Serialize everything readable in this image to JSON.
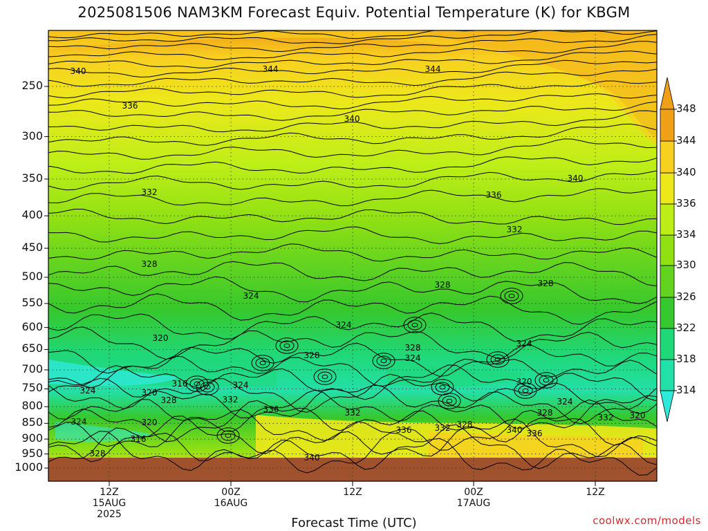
{
  "title": "2025081506 NAM3KM Forecast Equiv. Potential Temperature (K) for KBGM",
  "xlabel": "Forecast Time (UTC)",
  "credit": "coolwx.com/models",
  "chart_data": {
    "type": "heatmap",
    "title": "2025081506 NAM3KM Forecast Equiv. Potential Temperature (K) for KBGM",
    "xlabel": "Forecast Time (UTC)",
    "ylabel": "",
    "y_axis": "pressure (hPa), inverted",
    "y_ticks": [
      250,
      300,
      350,
      400,
      450,
      500,
      550,
      600,
      650,
      700,
      750,
      800,
      850,
      900,
      950,
      1000
    ],
    "ylim": [
      1000,
      200
    ],
    "x_ticks": [
      {
        "label": "12Z",
        "sub": "15AUG",
        "sub2": "2025"
      },
      {
        "label": "00Z",
        "sub": "16AUG",
        "sub2": ""
      },
      {
        "label": "12Z",
        "sub": "",
        "sub2": ""
      },
      {
        "label": "00Z",
        "sub": "17AUG",
        "sub2": ""
      },
      {
        "label": "12Z",
        "sub": "",
        "sub2": ""
      }
    ],
    "colorbar": {
      "levels": [
        314,
        318,
        322,
        326,
        330,
        334,
        336,
        340,
        344,
        348
      ],
      "colors": [
        "#2ee8d8",
        "#23e0a8",
        "#20d878",
        "#36c82c",
        "#62d420",
        "#90e014",
        "#bdee18",
        "#ece81a",
        "#f8d020",
        "#f0a018"
      ]
    },
    "contour_labels": [
      {
        "text": "340"
      },
      {
        "text": "344"
      },
      {
        "text": "344"
      },
      {
        "text": "336"
      },
      {
        "text": "340"
      },
      {
        "text": "340"
      },
      {
        "text": "336"
      },
      {
        "text": "332"
      },
      {
        "text": "332"
      },
      {
        "text": "328"
      },
      {
        "text": "328"
      },
      {
        "text": "328"
      },
      {
        "text": "324"
      },
      {
        "text": "324"
      },
      {
        "text": "320"
      },
      {
        "text": "328"
      },
      {
        "text": "324"
      },
      {
        "text": "328"
      },
      {
        "text": "324"
      },
      {
        "text": "324"
      },
      {
        "text": "316"
      },
      {
        "text": "324"
      },
      {
        "text": "320"
      },
      {
        "text": "328"
      },
      {
        "text": "332"
      },
      {
        "text": "336"
      },
      {
        "text": "320"
      },
      {
        "text": "332"
      },
      {
        "text": "324"
      },
      {
        "text": "320"
      },
      {
        "text": "316"
      },
      {
        "text": "328"
      },
      {
        "text": "340"
      },
      {
        "text": "336"
      },
      {
        "text": "332"
      },
      {
        "text": "328"
      },
      {
        "text": "340"
      },
      {
        "text": "336"
      },
      {
        "text": "328"
      },
      {
        "text": "324"
      },
      {
        "text": "332"
      },
      {
        "text": "320"
      }
    ]
  }
}
